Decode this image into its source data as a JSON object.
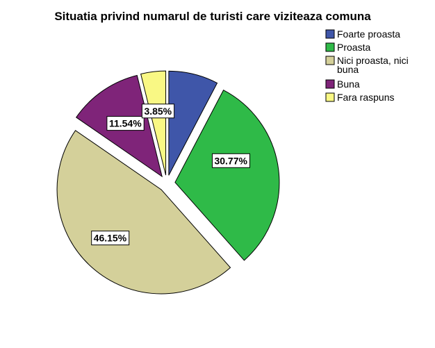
{
  "chart_data": {
    "type": "pie",
    "title": "Situatia privind numarul de turisti care viziteaza comuna",
    "legend_position": "top-right",
    "slices": [
      {
        "label": "Foarte proasta",
        "value": 7.69,
        "display": "",
        "color": "#3f56a9",
        "exploded": true
      },
      {
        "label": "Proasta",
        "value": 30.77,
        "display": "30.77%",
        "color": "#2fba48",
        "exploded": true
      },
      {
        "label": "Nici proasta, nici buna",
        "legend_lines": [
          "Nici proasta, nici",
          "buna"
        ],
        "value": 46.15,
        "display": "46.15%",
        "color": "#d4d09a",
        "exploded": true
      },
      {
        "label": "Buna",
        "value": 11.54,
        "display": "11.54%",
        "color": "#7f2479",
        "exploded": true
      },
      {
        "label": "Fara raspuns",
        "value": 3.85,
        "display": "3.85%",
        "color": "#f9f884",
        "exploded": true
      }
    ]
  }
}
